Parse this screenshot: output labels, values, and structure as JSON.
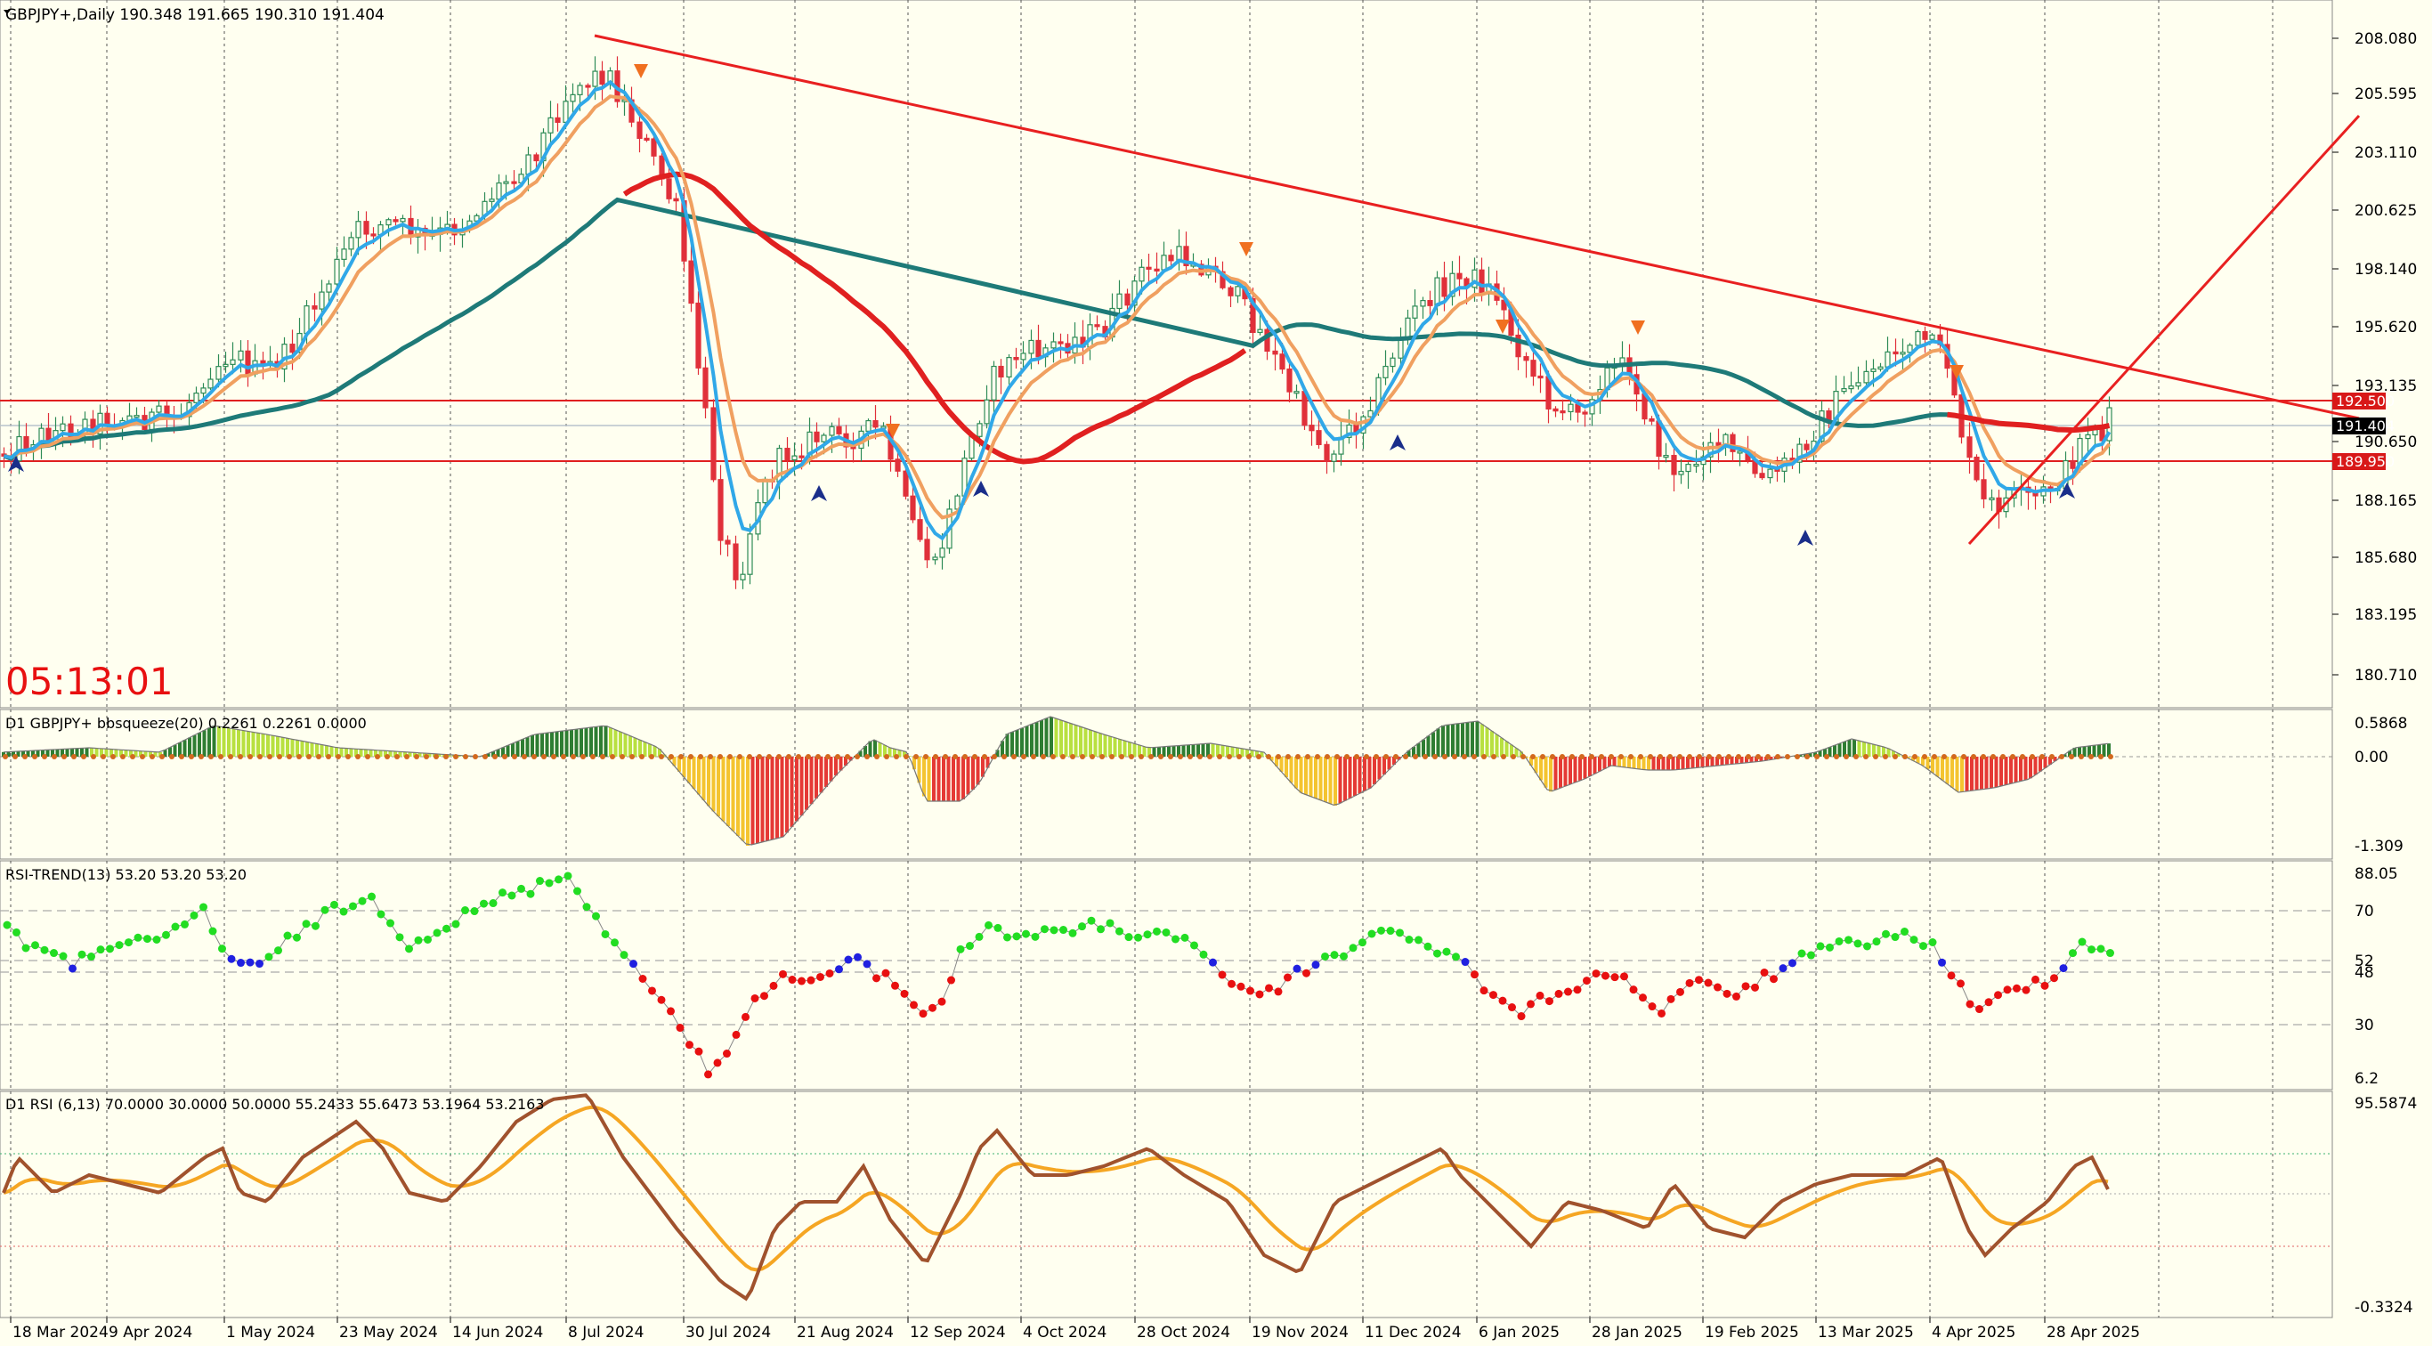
{
  "symbol_header": "GBPJPY+,Daily  190.348 191.665 190.310 191.404",
  "countdown": "05:13:01",
  "price_axis": [
    "208.080",
    "205.595",
    "203.110",
    "200.625",
    "198.140",
    "195.620",
    "193.135",
    "190.650",
    "188.165",
    "185.680",
    "183.195",
    "180.710"
  ],
  "price_levels": {
    "upper": "192.500",
    "current": "191.404",
    "lower": "189.950"
  },
  "bbsqueeze": {
    "title": "D1 GBPJPY+ bbsqueeze(20) 0.2261 0.2261 0.0000",
    "axis": [
      "0.5868",
      "0.00",
      "-1.309"
    ]
  },
  "rsi_trend": {
    "title": "RSI-TREND(13) 53.20 53.20 53.20",
    "axis": [
      "88.05",
      "70",
      "52",
      "48",
      "30",
      "6.2"
    ]
  },
  "rsi": {
    "title": "D1 RSI  (6,13) 70.0000 30.0000 50.0000 55.2433 55.6473 53.1964 53.2163",
    "axis": [
      "95.5874",
      "-0.3324"
    ]
  },
  "date_axis": [
    "18 Mar 2024",
    "9 Apr 2024",
    "1 May 2024",
    "23 May 2024",
    "14 Jun 2024",
    "8 Jul 2024",
    "30 Jul 2024",
    "21 Aug 2024",
    "12 Sep 2024",
    "4 Oct 2024",
    "28 Oct 2024",
    "19 Nov 2024",
    "11 Dec 2024",
    "6 Jan 2025",
    "28 Jan 2025",
    "19 Feb 2025",
    "13 Mar 2025",
    "4 Apr 2025",
    "28 Apr 2025"
  ],
  "colors": {
    "background": "#FFFFF0",
    "bull": "#2E8B57",
    "bear": "#E0303A",
    "trendline": "#E82020",
    "ma_fast": "#30A8E8",
    "ma_orange": "#F0A060",
    "ma_slow": "#1E7A78",
    "ma_red": "#E02020",
    "rsi_line": "#A0522D",
    "rsi_signal": "#F5A623"
  }
}
